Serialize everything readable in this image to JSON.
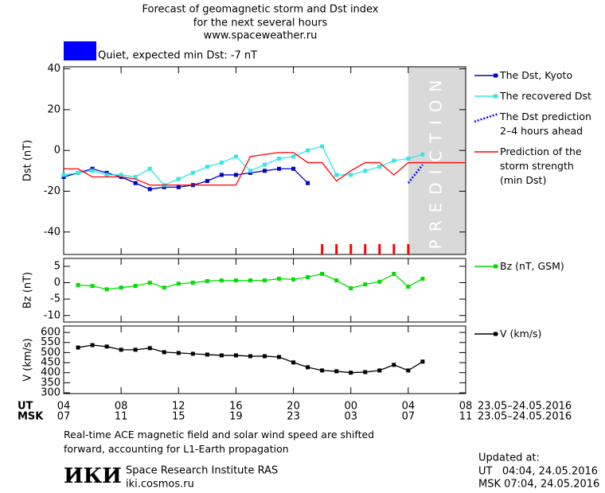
{
  "header": {
    "title": [
      "Forecast of geomagnetic storm and Dst index",
      "for the next several hours",
      "www.spaceweather.ru"
    ],
    "status": {
      "color": "#0000ff",
      "text": "Quiet, expected min Dst: -7 nT"
    }
  },
  "x_axis": {
    "xlim": [
      0,
      28
    ],
    "ut_label": "UT",
    "ut_ticks": [
      {
        "value": 0,
        "label": "04"
      },
      {
        "value": 4,
        "label": "08"
      },
      {
        "value": 8,
        "label": "12"
      },
      {
        "value": 12,
        "label": "16"
      },
      {
        "value": 16,
        "label": "20"
      },
      {
        "value": 20,
        "label": "00"
      },
      {
        "value": 24,
        "label": "04"
      },
      {
        "value": 28,
        "label": "08"
      }
    ],
    "msk_label": "MSK",
    "msk_ticks": [
      {
        "value": 0,
        "label": "07"
      },
      {
        "value": 4,
        "label": "11"
      },
      {
        "value": 8,
        "label": "15"
      },
      {
        "value": 12,
        "label": "19"
      },
      {
        "value": 16,
        "label": "23"
      },
      {
        "value": 20,
        "label": "03"
      },
      {
        "value": 24,
        "label": "07"
      },
      {
        "value": 28,
        "label": "11"
      }
    ],
    "date": "23.05–24.05.2016"
  },
  "chart_data": [
    {
      "type": "line",
      "ylabel": "Dst (nT)",
      "ylim": [
        -51,
        41
      ],
      "yticks": [
        -40,
        -20,
        0,
        20,
        40
      ],
      "prediction_region": [
        24,
        28
      ],
      "prediction_label": "PREDICTION",
      "red_marks": [
        18,
        19,
        20,
        21,
        22,
        23,
        24
      ],
      "series": [
        {
          "name": "The Dst, Kyoto",
          "color": "#0000cc",
          "marker": "square",
          "x": [
            0,
            1,
            2,
            3,
            4,
            5,
            6,
            7,
            8,
            9,
            10,
            11,
            12,
            13,
            14,
            15,
            16,
            17
          ],
          "values": [
            -13,
            -11,
            -9,
            -11,
            -13,
            -16,
            -19,
            -18,
            -18,
            -17,
            -15,
            -12,
            -12,
            -11,
            -10,
            -9,
            -9,
            -16
          ]
        },
        {
          "name": "The recovered Dst",
          "color": "#33e6e6",
          "marker": "square",
          "x": [
            0,
            1,
            2,
            3,
            4,
            5,
            6,
            7,
            8,
            9,
            10,
            11,
            12,
            13,
            14,
            15,
            16,
            17,
            18,
            19,
            20,
            21,
            22,
            23,
            24,
            25
          ],
          "values": [
            -12,
            -11,
            -10,
            -12,
            -12,
            -13,
            -9,
            -17,
            -14,
            -11,
            -8,
            -6,
            -3,
            -10,
            -7,
            -4,
            -3,
            0,
            2,
            -12,
            -12,
            -10,
            -8,
            -5,
            -4,
            -2
          ]
        },
        {
          "name": "The Dst prediction\n2–4 hours ahead",
          "color": "#0000ff",
          "marker": "none",
          "dash": "dotted",
          "x": [
            24,
            25
          ],
          "values": [
            -16,
            -7
          ]
        },
        {
          "name": "Prediction of the\nstorm strength\n(min Dst)",
          "color": "#ff0000",
          "marker": "none",
          "x": [
            0,
            1,
            2,
            4,
            5,
            6,
            12,
            13,
            15,
            16,
            17,
            18,
            19,
            20,
            21,
            22,
            23,
            24,
            28
          ],
          "values": [
            -9,
            -9,
            -13,
            -13,
            -14,
            -17,
            -17,
            -3,
            -1,
            -1,
            -6,
            -6,
            -15,
            -10,
            -6,
            -6,
            -12,
            -6,
            -6
          ]
        }
      ]
    },
    {
      "type": "line",
      "ylabel": "Bz (nT)",
      "ylim": [
        -12,
        7.4
      ],
      "yticks": [
        -10,
        -5,
        0,
        5
      ],
      "series": [
        {
          "name": "Bz (nT, GSM)",
          "color": "#00dd00",
          "marker": "square",
          "x": [
            1,
            2,
            3,
            4,
            5,
            6,
            7,
            8,
            9,
            10,
            11,
            12,
            13,
            14,
            15,
            16,
            17,
            18,
            19,
            20,
            21,
            22,
            23,
            24,
            25
          ],
          "values": [
            -0.7,
            -1,
            -2,
            -1.5,
            -1,
            0,
            -1.5,
            -0.3,
            0,
            0.5,
            0.7,
            0.7,
            0.7,
            0.7,
            1.2,
            1,
            1.7,
            2.7,
            0.7,
            -1.7,
            -0.5,
            0.3,
            2.7,
            -1.2,
            1.2
          ]
        }
      ]
    },
    {
      "type": "line",
      "ylabel": "V (km/s)",
      "ylim": [
        296,
        632
      ],
      "yticks": [
        300,
        350,
        400,
        450,
        500,
        550,
        600
      ],
      "series": [
        {
          "name": "V (km/s)",
          "color": "#000000",
          "marker": "square",
          "x": [
            1,
            2,
            3,
            4,
            5,
            6,
            7,
            8,
            9,
            10,
            11,
            12,
            13,
            14,
            15,
            16,
            17,
            18,
            19,
            20,
            21,
            22,
            23,
            24,
            25
          ],
          "values": [
            525,
            537,
            530,
            514,
            514,
            522,
            502,
            498,
            494,
            490,
            486,
            486,
            482,
            482,
            478,
            451,
            427,
            411,
            407,
            400,
            403,
            411,
            439,
            411,
            455
          ]
        }
      ]
    }
  ],
  "footer": {
    "note": "Real-time ACE magnetic field and solar wind speed are shifted\nforward, accounting for L1-Earth propagation",
    "logo": "ИКИ",
    "institute": "Space Research Institute RAS",
    "site": "iki.cosmos.ru",
    "updated": "Updated at:",
    "updated_ut": "UT   04:04, 24.05.2016",
    "updated_msk": "MSK 07:04, 24.05.2016"
  }
}
